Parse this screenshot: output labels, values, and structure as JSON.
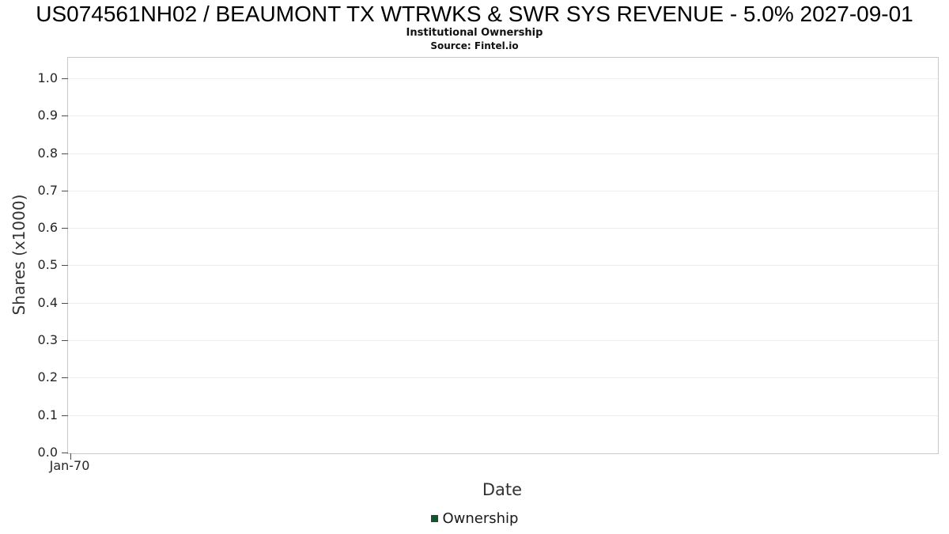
{
  "header": {
    "title": "US074561NH02 / BEAUMONT TX WTRWKS & SWR SYS REVENUE - 5.0% 2027-09-01",
    "subtitle": "Institutional Ownership",
    "source": "Source: Fintel.io"
  },
  "chart_data": {
    "type": "line",
    "title": "US074561NH02 / BEAUMONT TX WTRWKS & SWR SYS REVENUE - 5.0% 2027-09-01",
    "subtitle": "Institutional Ownership",
    "source": "Source: Fintel.io",
    "xlabel": "Date",
    "ylabel": "Shares (x1000)",
    "ylim": [
      0.0,
      1.057
    ],
    "yticks": [
      0.0,
      0.1,
      0.2,
      0.3,
      0.4,
      0.5,
      0.6,
      0.7,
      0.8,
      0.9,
      1.0
    ],
    "ytick_labels": [
      "0.0",
      "0.1",
      "0.2",
      "0.3",
      "0.4",
      "0.5",
      "0.6",
      "0.7",
      "0.8",
      "0.9",
      "1.0"
    ],
    "xticks": [
      "Jan-70"
    ],
    "grid": true,
    "legend_position": "bottom",
    "series": [
      {
        "name": "Ownership",
        "color": "#14532d",
        "x": [],
        "y": []
      }
    ]
  }
}
